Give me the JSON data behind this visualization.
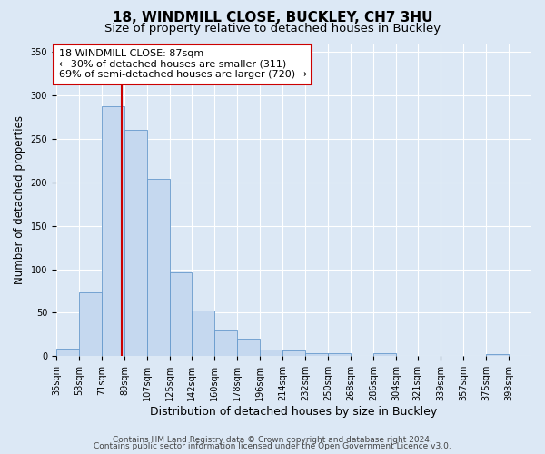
{
  "title1": "18, WINDMILL CLOSE, BUCKLEY, CH7 3HU",
  "title2": "Size of property relative to detached houses in Buckley",
  "xlabel": "Distribution of detached houses by size in Buckley",
  "ylabel": "Number of detached properties",
  "bar_left_edges": [
    35,
    53,
    71,
    89,
    107,
    125,
    142,
    160,
    178,
    196,
    214,
    232,
    250,
    268,
    286,
    304,
    321,
    339,
    357,
    375
  ],
  "bar_heights": [
    9,
    73,
    287,
    260,
    204,
    96,
    53,
    31,
    20,
    8,
    7,
    4,
    4,
    0,
    3,
    0,
    0,
    0,
    0,
    2
  ],
  "bar_widths": [
    18,
    18,
    18,
    18,
    18,
    17,
    18,
    18,
    18,
    18,
    18,
    18,
    18,
    18,
    18,
    17,
    18,
    18,
    18,
    18
  ],
  "tick_labels": [
    "35sqm",
    "53sqm",
    "71sqm",
    "89sqm",
    "107sqm",
    "125sqm",
    "142sqm",
    "160sqm",
    "178sqm",
    "196sqm",
    "214sqm",
    "232sqm",
    "250sqm",
    "268sqm",
    "286sqm",
    "304sqm",
    "321sqm",
    "339sqm",
    "357sqm",
    "375sqm",
    "393sqm"
  ],
  "tick_positions": [
    35,
    53,
    71,
    89,
    107,
    125,
    142,
    160,
    178,
    196,
    214,
    232,
    250,
    268,
    286,
    304,
    321,
    339,
    357,
    375,
    393
  ],
  "bar_color": "#c5d8ef",
  "bar_edge_color": "#6699cc",
  "vline_x": 87,
  "vline_color": "#cc0000",
  "annotation_line1": "18 WINDMILL CLOSE: 87sqm",
  "annotation_line2": "← 30% of detached houses are smaller (311)",
  "annotation_line3": "69% of semi-detached houses are larger (720) →",
  "annotation_box_color": "#ffffff",
  "annotation_box_edge": "#cc0000",
  "ylim": [
    0,
    360
  ],
  "yticks": [
    0,
    50,
    100,
    150,
    200,
    250,
    300,
    350
  ],
  "xlim_left": 35,
  "xlim_right": 411,
  "background_color": "#dce8f5",
  "plot_bg_color": "#dce8f5",
  "footer1": "Contains HM Land Registry data © Crown copyright and database right 2024.",
  "footer2": "Contains public sector information licensed under the Open Government Licence v3.0.",
  "grid_color": "#ffffff",
  "title1_fontsize": 11,
  "title2_fontsize": 9.5,
  "xlabel_fontsize": 9,
  "ylabel_fontsize": 8.5,
  "annotation_fontsize": 8,
  "tick_fontsize": 7,
  "footer_fontsize": 6.5
}
